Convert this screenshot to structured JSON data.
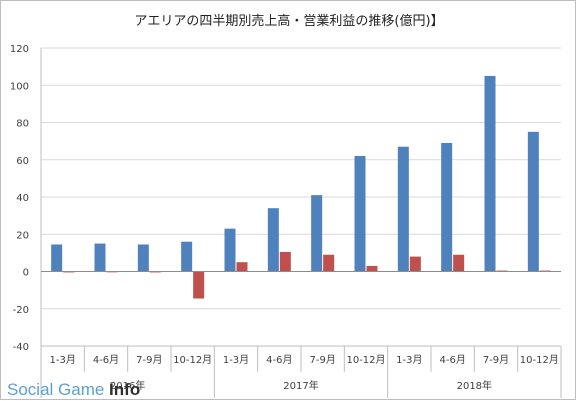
{
  "chart_data": {
    "type": "bar",
    "title": "アエリアの四半期別売上高・営業利益の推移(億円)】",
    "categories": [
      "1-3月",
      "4-6月",
      "7-9月",
      "10-12月",
      "1-3月",
      "4-6月",
      "7-9月",
      "10-12月",
      "1-3月",
      "4-6月",
      "7-9月",
      "10-12月"
    ],
    "groups": [
      {
        "label": "2016年",
        "start": 0,
        "end": 3
      },
      {
        "label": "2017年",
        "start": 4,
        "end": 7
      },
      {
        "label": "2018年",
        "start": 8,
        "end": 11
      }
    ],
    "series": [
      {
        "values": [
          14.5,
          15,
          14.5,
          16,
          23,
          34,
          41,
          62,
          67,
          69,
          105,
          75
        ],
        "color": "#4f81bd"
      },
      {
        "values": [
          -0.5,
          0,
          -0.5,
          -14.5,
          5,
          10.5,
          9,
          3,
          8,
          9,
          0.5,
          0.5
        ],
        "color": "#c0504d"
      }
    ],
    "ylim": [
      -40,
      120
    ],
    "yticks": [
      -40,
      -20,
      0,
      20,
      40,
      60,
      80,
      100,
      120
    ],
    "grid": true,
    "legend": "none"
  },
  "watermark": {
    "part1": "Social Game ",
    "part2": "Info"
  }
}
